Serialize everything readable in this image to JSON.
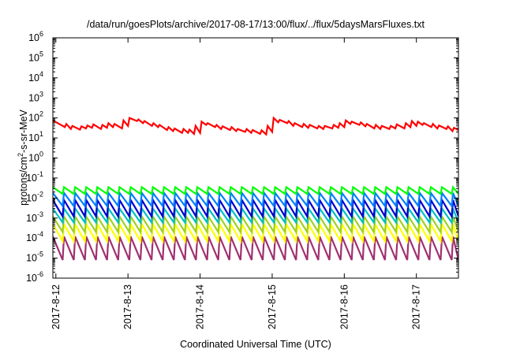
{
  "chart_data": {
    "type": "line",
    "title": "/data/run/goesPlots/archive/2017-08-17/13:00/flux/../flux/5daysMarsFluxes.txt",
    "xlabel": "Coordinated Universal Time (UTC)",
    "ylabel": "protons/cm2-s-sr-MeV",
    "ylabel_parts": {
      "pre": "protons/cm",
      "sup": "2",
      "post": "-s-sr-MeV"
    },
    "y_scale": "log",
    "ylim": [
      1e-06,
      1000000.0
    ],
    "y_ticks": [
      {
        "value": 1e-06,
        "base": "10",
        "exp": "-6"
      },
      {
        "value": 1e-05,
        "base": "10",
        "exp": "-5"
      },
      {
        "value": 0.0001,
        "base": "10",
        "exp": "-4"
      },
      {
        "value": 0.001,
        "base": "10",
        "exp": "-3"
      },
      {
        "value": 0.01,
        "base": "10",
        "exp": "-2"
      },
      {
        "value": 0.1,
        "base": "10",
        "exp": "-1"
      },
      {
        "value": 1,
        "base": "10",
        "exp": "0"
      },
      {
        "value": 10,
        "base": "10",
        "exp": "1"
      },
      {
        "value": 100,
        "base": "10",
        "exp": "2"
      },
      {
        "value": 1000,
        "base": "10",
        "exp": "3"
      },
      {
        "value": 10000,
        "base": "10",
        "exp": "4"
      },
      {
        "value": 100000,
        "base": "10",
        "exp": "5"
      },
      {
        "value": 1000000,
        "base": "10",
        "exp": "6"
      }
    ],
    "xlim": [
      "2017-08-11 23:00",
      "2017-08-17 14:00"
    ],
    "x_ticks": [
      {
        "date": "2017-08-12 00:00",
        "label": "2017-8-12"
      },
      {
        "date": "2017-08-13 00:00",
        "label": "2017-8-13"
      },
      {
        "date": "2017-08-14 00:00",
        "label": "2017-8-14"
      },
      {
        "date": "2017-08-15 00:00",
        "label": "2017-8-15"
      },
      {
        "date": "2017-08-16 00:00",
        "label": "2017-8-16"
      },
      {
        "date": "2017-08-17 00:00",
        "label": "2017-8-17"
      }
    ],
    "grid": false,
    "legend": "none",
    "series": [
      {
        "color": "#ff0000",
        "points": [
          [
            "2017-08-11 23:00",
            75
          ],
          [
            "2017-08-12 03:00",
            35
          ],
          [
            "2017-08-12 03:30",
            50
          ],
          [
            "2017-08-12 05:00",
            28
          ],
          [
            "2017-08-12 05:30",
            40
          ],
          [
            "2017-08-12 08:00",
            26
          ],
          [
            "2017-08-12 08:30",
            38
          ],
          [
            "2017-08-12 10:00",
            30
          ],
          [
            "2017-08-12 10:30",
            42
          ],
          [
            "2017-08-12 12:00",
            32
          ],
          [
            "2017-08-12 12:30",
            48
          ],
          [
            "2017-08-12 15:00",
            28
          ],
          [
            "2017-08-12 15:30",
            45
          ],
          [
            "2017-08-12 17:00",
            32
          ],
          [
            "2017-08-12 17:30",
            55
          ],
          [
            "2017-08-12 19:00",
            35
          ],
          [
            "2017-08-12 19:30",
            50
          ],
          [
            "2017-08-12 22:00",
            30
          ],
          [
            "2017-08-12 22:30",
            75
          ],
          [
            "2017-08-13 00:00",
            40
          ],
          [
            "2017-08-13 00:30",
            100
          ],
          [
            "2017-08-13 03:00",
            70
          ],
          [
            "2017-08-13 03:30",
            85
          ],
          [
            "2017-08-13 05:00",
            55
          ],
          [
            "2017-08-13 05:30",
            70
          ],
          [
            "2017-08-13 08:00",
            40
          ],
          [
            "2017-08-13 08:30",
            55
          ],
          [
            "2017-08-13 10:00",
            35
          ],
          [
            "2017-08-13 10:30",
            45
          ],
          [
            "2017-08-13 13:00",
            25
          ],
          [
            "2017-08-13 13:30",
            35
          ],
          [
            "2017-08-13 15:00",
            22
          ],
          [
            "2017-08-13 15:30",
            30
          ],
          [
            "2017-08-13 18:00",
            18
          ],
          [
            "2017-08-13 18:30",
            28
          ],
          [
            "2017-08-13 20:00",
            18
          ],
          [
            "2017-08-13 20:30",
            26
          ],
          [
            "2017-08-13 22:00",
            16
          ],
          [
            "2017-08-13 22:30",
            40
          ],
          [
            "2017-08-14 00:00",
            18
          ],
          [
            "2017-08-14 00:30",
            65
          ],
          [
            "2017-08-14 02:00",
            45
          ],
          [
            "2017-08-14 02:30",
            55
          ],
          [
            "2017-08-14 05:00",
            35
          ],
          [
            "2017-08-14 05:30",
            45
          ],
          [
            "2017-08-14 07:00",
            28
          ],
          [
            "2017-08-14 07:30",
            38
          ],
          [
            "2017-08-14 10:00",
            25
          ],
          [
            "2017-08-14 10:30",
            35
          ],
          [
            "2017-08-14 12:00",
            22
          ],
          [
            "2017-08-14 12:30",
            28
          ],
          [
            "2017-08-14 15:00",
            20
          ],
          [
            "2017-08-14 15:30",
            28
          ],
          [
            "2017-08-14 17:00",
            18
          ],
          [
            "2017-08-14 17:30",
            25
          ],
          [
            "2017-08-14 20:00",
            16
          ],
          [
            "2017-08-14 20:30",
            24
          ],
          [
            "2017-08-14 22:00",
            15
          ],
          [
            "2017-08-14 22:30",
            40
          ],
          [
            "2017-08-15 00:00",
            20
          ],
          [
            "2017-08-15 00:30",
            100
          ],
          [
            "2017-08-15 02:00",
            60
          ],
          [
            "2017-08-15 02:30",
            80
          ],
          [
            "2017-08-15 05:00",
            55
          ],
          [
            "2017-08-15 05:30",
            70
          ],
          [
            "2017-08-15 07:00",
            40
          ],
          [
            "2017-08-15 07:30",
            55
          ],
          [
            "2017-08-15 10:00",
            35
          ],
          [
            "2017-08-15 10:30",
            50
          ],
          [
            "2017-08-15 12:00",
            32
          ],
          [
            "2017-08-15 12:30",
            45
          ],
          [
            "2017-08-15 15:00",
            30
          ],
          [
            "2017-08-15 15:30",
            40
          ],
          [
            "2017-08-15 17:00",
            28
          ],
          [
            "2017-08-15 17:30",
            40
          ],
          [
            "2017-08-15 20:00",
            30
          ],
          [
            "2017-08-15 20:30",
            45
          ],
          [
            "2017-08-15 22:00",
            32
          ],
          [
            "2017-08-15 22:30",
            55
          ],
          [
            "2017-08-16 00:00",
            35
          ],
          [
            "2017-08-16 00:30",
            75
          ],
          [
            "2017-08-16 02:00",
            50
          ],
          [
            "2017-08-16 02:30",
            65
          ],
          [
            "2017-08-16 05:00",
            45
          ],
          [
            "2017-08-16 05:30",
            60
          ],
          [
            "2017-08-16 07:00",
            38
          ],
          [
            "2017-08-16 07:30",
            50
          ],
          [
            "2017-08-16 10:00",
            30
          ],
          [
            "2017-08-16 10:30",
            45
          ],
          [
            "2017-08-16 12:00",
            28
          ],
          [
            "2017-08-16 12:30",
            40
          ],
          [
            "2017-08-16 15:00",
            28
          ],
          [
            "2017-08-16 15:30",
            40
          ],
          [
            "2017-08-16 17:00",
            30
          ],
          [
            "2017-08-16 17:30",
            48
          ],
          [
            "2017-08-16 20:00",
            30
          ],
          [
            "2017-08-16 20:30",
            55
          ],
          [
            "2017-08-16 22:00",
            35
          ],
          [
            "2017-08-16 22:30",
            70
          ],
          [
            "2017-08-17 00:00",
            40
          ],
          [
            "2017-08-17 00:30",
            65
          ],
          [
            "2017-08-17 02:00",
            45
          ],
          [
            "2017-08-17 02:30",
            55
          ],
          [
            "2017-08-17 05:00",
            35
          ],
          [
            "2017-08-17 05:30",
            50
          ],
          [
            "2017-08-17 07:00",
            30
          ],
          [
            "2017-08-17 07:30",
            42
          ],
          [
            "2017-08-17 10:00",
            28
          ],
          [
            "2017-08-17 10:30",
            38
          ],
          [
            "2017-08-17 12:00",
            22
          ],
          [
            "2017-08-17 12:30",
            32
          ],
          [
            "2017-08-17 14:00",
            25
          ]
        ]
      },
      {
        "color": "#00ff00",
        "sawtooth": {
          "start": "2017-08-11 23:00",
          "end": "2017-08-17 14:00",
          "period_hours": 3.7,
          "peak": 0.035,
          "trough": 0.016
        }
      },
      {
        "color": "#0080ff",
        "sawtooth": {
          "start": "2017-08-11 23:00",
          "end": "2017-08-17 14:00",
          "period_hours": 3.7,
          "peak": 0.018,
          "trough": 0.004
        }
      },
      {
        "color": "#0000cc",
        "sawtooth": {
          "start": "2017-08-11 23:00",
          "end": "2017-08-17 14:00",
          "period_hours": 3.7,
          "peak": 0.008,
          "trough": 0.0012
        }
      },
      {
        "color": "#00c0c0",
        "sawtooth": {
          "start": "2017-08-11 23:00",
          "end": "2017-08-17 14:00",
          "period_hours": 3.7,
          "peak": 0.003,
          "trough": 0.0006
        }
      },
      {
        "color": "#a0d020",
        "sawtooth": {
          "start": "2017-08-11 23:00",
          "end": "2017-08-17 14:00",
          "period_hours": 3.7,
          "peak": 0.0012,
          "trough": 0.0002
        }
      },
      {
        "color": "#ffff00",
        "sawtooth": {
          "start": "2017-08-11 23:00",
          "end": "2017-08-17 14:00",
          "period_hours": 3.7,
          "peak": 0.0005,
          "trough": 7e-05
        }
      },
      {
        "color": "#a03070",
        "sawtooth": {
          "start": "2017-08-11 23:00",
          "end": "2017-08-17 14:00",
          "period_hours": 3.7,
          "peak": 0.00012,
          "trough": 8e-06
        }
      }
    ]
  }
}
